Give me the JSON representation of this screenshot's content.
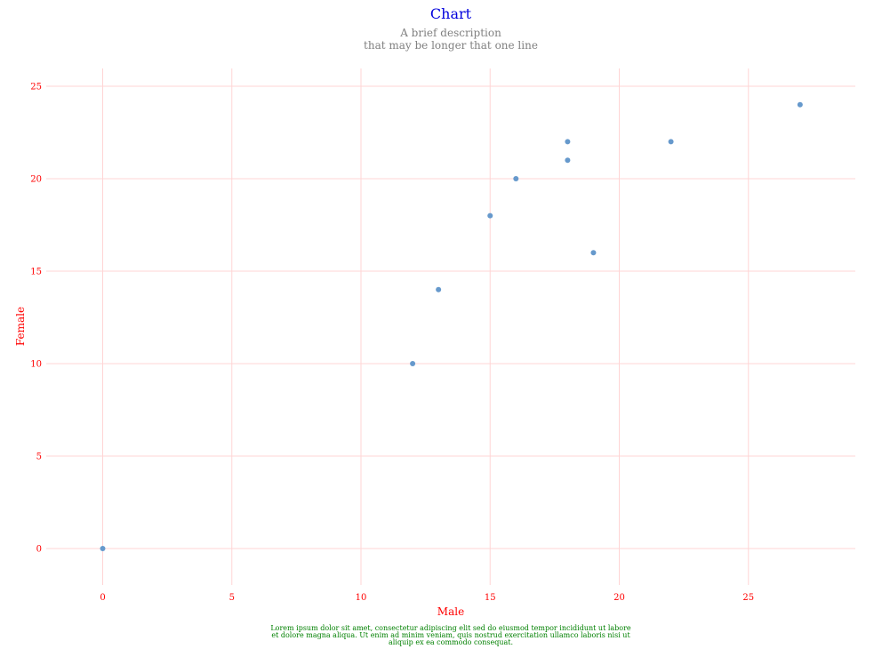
{
  "chart": {
    "title": "Chart",
    "subtitle_lines": [
      "A brief description",
      "that may be longer that one line"
    ],
    "footnote_lines": [
      "Lorem ipsum dolor sit amet, consectetur adipiscing elit sed do eiusmod tempor incididunt ut labore",
      "et dolore magna aliqua. Ut enim ad minim veniam, quis nostrud exercitation ullamco laboris nisi ut",
      "aliquip ex ea commodo consequat."
    ]
  },
  "chart_data": {
    "type": "scatter",
    "title": "Chart",
    "subtitle": "A brief description that may be longer that one line",
    "xlabel": "Male",
    "ylabel": "Female",
    "xlim": [
      -2,
      29
    ],
    "ylim": [
      -1.5,
      26
    ],
    "x_ticks": [
      0,
      5,
      10,
      15,
      20,
      25
    ],
    "y_ticks": [
      0,
      5,
      10,
      15,
      20,
      25
    ],
    "grid": true,
    "legend": "none",
    "point_color": "#6699cc",
    "grid_color": "#ffd5d5",
    "label_color": "#ff0000",
    "title_color": "#0000dd",
    "subtitle_color": "#808080",
    "footnote_color": "#008000",
    "points": [
      {
        "x": 0,
        "y": 0
      },
      {
        "x": 12,
        "y": 10
      },
      {
        "x": 13,
        "y": 14
      },
      {
        "x": 15,
        "y": 18
      },
      {
        "x": 16,
        "y": 20
      },
      {
        "x": 18,
        "y": 21
      },
      {
        "x": 18,
        "y": 22
      },
      {
        "x": 19,
        "y": 16
      },
      {
        "x": 22,
        "y": 22
      },
      {
        "x": 27,
        "y": 24
      }
    ]
  }
}
